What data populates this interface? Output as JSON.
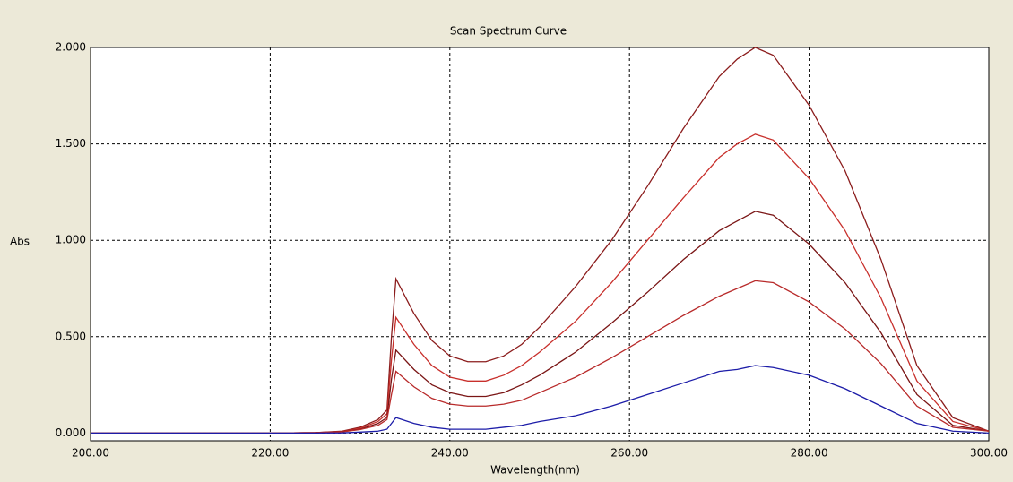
{
  "chart_data": {
    "type": "line",
    "title": "Scan Spectrum Curve",
    "x_label": "Wavelength(nm)",
    "y_label": "Abs",
    "x": [
      200,
      210,
      220,
      225,
      228,
      230,
      232,
      233,
      233.5,
      234,
      236,
      238,
      240,
      242,
      244,
      246,
      248,
      250,
      254,
      258,
      262,
      266,
      270,
      272,
      274,
      276,
      280,
      284,
      288,
      292,
      296,
      300
    ],
    "series": [
      {
        "color": "#8b1c1c",
        "values": [
          0,
          0,
          0,
          0.002,
          0.01,
          0.03,
          0.07,
          0.12,
          0.5,
          0.8,
          0.62,
          0.48,
          0.4,
          0.37,
          0.37,
          0.4,
          0.46,
          0.55,
          0.76,
          1.0,
          1.28,
          1.58,
          1.85,
          1.94,
          2.0,
          1.96,
          1.7,
          1.36,
          0.9,
          0.35,
          0.08,
          0.01
        ]
      },
      {
        "color": "#c8302c",
        "values": [
          0,
          0,
          0,
          0.002,
          0.008,
          0.025,
          0.06,
          0.1,
          0.38,
          0.6,
          0.46,
          0.35,
          0.29,
          0.27,
          0.27,
          0.3,
          0.35,
          0.42,
          0.58,
          0.78,
          1.0,
          1.22,
          1.43,
          1.5,
          1.55,
          1.52,
          1.32,
          1.05,
          0.7,
          0.27,
          0.06,
          0.01
        ]
      },
      {
        "color": "#7a1515",
        "values": [
          0,
          0,
          0,
          0.002,
          0.007,
          0.02,
          0.05,
          0.08,
          0.28,
          0.43,
          0.33,
          0.25,
          0.21,
          0.19,
          0.19,
          0.21,
          0.25,
          0.3,
          0.42,
          0.57,
          0.73,
          0.9,
          1.05,
          1.1,
          1.15,
          1.13,
          0.98,
          0.78,
          0.52,
          0.2,
          0.04,
          0.01
        ]
      },
      {
        "color": "#b82a2a",
        "values": [
          0,
          0,
          0,
          0.002,
          0.006,
          0.018,
          0.04,
          0.07,
          0.2,
          0.32,
          0.24,
          0.18,
          0.15,
          0.14,
          0.14,
          0.15,
          0.17,
          0.21,
          0.29,
          0.39,
          0.5,
          0.61,
          0.71,
          0.75,
          0.79,
          0.78,
          0.68,
          0.54,
          0.36,
          0.14,
          0.03,
          0.01
        ]
      },
      {
        "color": "#1c1ca8",
        "values": [
          0,
          0,
          0,
          0,
          0.001,
          0.005,
          0.01,
          0.02,
          0.05,
          0.08,
          0.05,
          0.03,
          0.02,
          0.02,
          0.02,
          0.03,
          0.04,
          0.06,
          0.09,
          0.14,
          0.2,
          0.26,
          0.32,
          0.33,
          0.35,
          0.34,
          0.3,
          0.23,
          0.14,
          0.05,
          0.01,
          0
        ]
      }
    ],
    "xlim": [
      200,
      300
    ],
    "xticks": [
      {
        "value": 200,
        "label": "200.00"
      },
      {
        "value": 220,
        "label": "220.00"
      },
      {
        "value": 240,
        "label": "240.00"
      },
      {
        "value": 260,
        "label": "260.00"
      },
      {
        "value": 280,
        "label": "280.00"
      },
      {
        "value": 300,
        "label": "300.00"
      }
    ],
    "ylim": [
      -0.04,
      2.0
    ],
    "yticks": [
      {
        "value": 0,
        "label": "0.000"
      },
      {
        "value": 0.5,
        "label": "0.500"
      },
      {
        "value": 1,
        "label": "1.000"
      },
      {
        "value": 1.5,
        "label": "1.500"
      },
      {
        "value": 2,
        "label": "2.000"
      }
    ],
    "grid": true
  }
}
